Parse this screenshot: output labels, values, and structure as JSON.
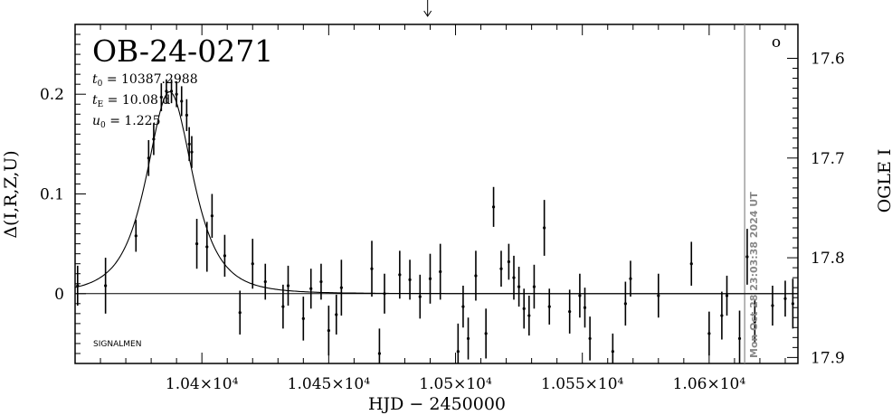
{
  "chart_data": {
    "type": "scatter",
    "title": "OB-24-0271",
    "params": [
      {
        "sym": "t",
        "sub": "0",
        "text": " = 10387.2988"
      },
      {
        "sym": "t",
        "sub": "E",
        "text": " = 10.08 d"
      },
      {
        "sym": "u",
        "sub": "0",
        "text": " = 1.225"
      }
    ],
    "xlabel": "HJD − 2450000",
    "ylabel": "Δ(I,R,Z,U)",
    "y2label": "OGLE I",
    "xlim": [
      10350,
      10635
    ],
    "ylim": [
      -0.07,
      0.27
    ],
    "x_ticks": [
      {
        "value": 10400,
        "label": "1.04×10⁴"
      },
      {
        "value": 10450,
        "label": "1.045×10⁴"
      },
      {
        "value": 10500,
        "label": "1.05×10⁴"
      },
      {
        "value": 10550,
        "label": "1.055×10⁴"
      },
      {
        "value": 10600,
        "label": "1.06×10⁴"
      }
    ],
    "y_ticks": [
      {
        "value": 0,
        "label": "0"
      },
      {
        "value": 0.1,
        "label": "0.1"
      },
      {
        "value": 0.2,
        "label": "0.2"
      }
    ],
    "y2_ticks": [
      {
        "value": 17.6,
        "label": "17.6"
      },
      {
        "value": 17.7,
        "label": "17.7"
      },
      {
        "value": 17.8,
        "label": "17.8"
      },
      {
        "value": 17.9,
        "label": "17.9"
      }
    ],
    "y2_baseline_mag": 17.836,
    "y2_mag_per_unit": -1,
    "model": {
      "t0": 10387.2988,
      "tE": 10.08,
      "amp": 0.2025,
      "baseline": 0
    },
    "current_date_hjd": 10614,
    "date_stamp": "Mon Oct 28 23:03:38 2024 UT",
    "arrow_hjd": 10489,
    "legend_marker": "o",
    "footer_label": "SIGNALMEN",
    "grid": false,
    "points": [
      {
        "x": 10351,
        "y": 0.008,
        "e": 0.02
      },
      {
        "x": 10362,
        "y": 0.008,
        "e": 0.028
      },
      {
        "x": 10374,
        "y": 0.058,
        "e": 0.016
      },
      {
        "x": 10379,
        "y": 0.136,
        "e": 0.018
      },
      {
        "x": 10381,
        "y": 0.155,
        "e": 0.016
      },
      {
        "x": 10384,
        "y": 0.197,
        "e": 0.014
      },
      {
        "x": 10386,
        "y": 0.203,
        "e": 0.012
      },
      {
        "x": 10388,
        "y": 0.203,
        "e": 0.012
      },
      {
        "x": 10390,
        "y": 0.2,
        "e": 0.013
      },
      {
        "x": 10392,
        "y": 0.193,
        "e": 0.015
      },
      {
        "x": 10394,
        "y": 0.179,
        "e": 0.016
      },
      {
        "x": 10395,
        "y": 0.15,
        "e": 0.017
      },
      {
        "x": 10396,
        "y": 0.142,
        "e": 0.016
      },
      {
        "x": 10398,
        "y": 0.05,
        "e": 0.025
      },
      {
        "x": 10402,
        "y": 0.047,
        "e": 0.025
      },
      {
        "x": 10404,
        "y": 0.078,
        "e": 0.022
      },
      {
        "x": 10409,
        "y": 0.038,
        "e": 0.021
      },
      {
        "x": 10415,
        "y": -0.019,
        "e": 0.022
      },
      {
        "x": 10420,
        "y": 0.03,
        "e": 0.025
      },
      {
        "x": 10425,
        "y": 0.012,
        "e": 0.018
      },
      {
        "x": 10432,
        "y": -0.013,
        "e": 0.022
      },
      {
        "x": 10434,
        "y": 0.008,
        "e": 0.02
      },
      {
        "x": 10440,
        "y": -0.025,
        "e": 0.022
      },
      {
        "x": 10443,
        "y": 0.005,
        "e": 0.02
      },
      {
        "x": 10447,
        "y": 0.012,
        "e": 0.018
      },
      {
        "x": 10450,
        "y": -0.037,
        "e": 0.025
      },
      {
        "x": 10453,
        "y": -0.021,
        "e": 0.02
      },
      {
        "x": 10455,
        "y": 0.006,
        "e": 0.028
      },
      {
        "x": 10467,
        "y": 0.025,
        "e": 0.028
      },
      {
        "x": 10470,
        "y": -0.06,
        "e": 0.025
      },
      {
        "x": 10472,
        "y": 0.0,
        "e": 0.02
      },
      {
        "x": 10478,
        "y": 0.019,
        "e": 0.024
      },
      {
        "x": 10482,
        "y": 0.014,
        "e": 0.02
      },
      {
        "x": 10486,
        "y": -0.003,
        "e": 0.022
      },
      {
        "x": 10490,
        "y": 0.015,
        "e": 0.025
      },
      {
        "x": 10494,
        "y": 0.022,
        "e": 0.028
      },
      {
        "x": 10501,
        "y": -0.058,
        "e": 0.028
      },
      {
        "x": 10503,
        "y": -0.013,
        "e": 0.021
      },
      {
        "x": 10505,
        "y": -0.045,
        "e": 0.021
      },
      {
        "x": 10508,
        "y": 0.018,
        "e": 0.025
      },
      {
        "x": 10512,
        "y": -0.04,
        "e": 0.025
      },
      {
        "x": 10515,
        "y": 0.087,
        "e": 0.02
      },
      {
        "x": 10518,
        "y": 0.025,
        "e": 0.018
      },
      {
        "x": 10521,
        "y": 0.032,
        "e": 0.018
      },
      {
        "x": 10523,
        "y": 0.016,
        "e": 0.022
      },
      {
        "x": 10525,
        "y": 0.007,
        "e": 0.02
      },
      {
        "x": 10527,
        "y": -0.015,
        "e": 0.02
      },
      {
        "x": 10529,
        "y": -0.022,
        "e": 0.02
      },
      {
        "x": 10531,
        "y": 0.007,
        "e": 0.022
      },
      {
        "x": 10535,
        "y": 0.066,
        "e": 0.028
      },
      {
        "x": 10537,
        "y": -0.013,
        "e": 0.018
      },
      {
        "x": 10545,
        "y": -0.018,
        "e": 0.022
      },
      {
        "x": 10549,
        "y": -0.002,
        "e": 0.022
      },
      {
        "x": 10551,
        "y": -0.014,
        "e": 0.02
      },
      {
        "x": 10553,
        "y": -0.045,
        "e": 0.022
      },
      {
        "x": 10562,
        "y": -0.058,
        "e": 0.018
      },
      {
        "x": 10567,
        "y": -0.01,
        "e": 0.022
      },
      {
        "x": 10569,
        "y": 0.015,
        "e": 0.018
      },
      {
        "x": 10580,
        "y": -0.002,
        "e": 0.022
      },
      {
        "x": 10593,
        "y": 0.03,
        "e": 0.022
      },
      {
        "x": 10600,
        "y": -0.04,
        "e": 0.022
      },
      {
        "x": 10605,
        "y": -0.022,
        "e": 0.024
      },
      {
        "x": 10607,
        "y": -0.002,
        "e": 0.02
      },
      {
        "x": 10612,
        "y": -0.045,
        "e": 0.028
      },
      {
        "x": 10615,
        "y": 0.037,
        "e": 0.028
      },
      {
        "x": 10618,
        "y": -0.028,
        "e": 0.022
      },
      {
        "x": 10625,
        "y": -0.012,
        "e": 0.02
      },
      {
        "x": 10630,
        "y": -0.005,
        "e": 0.018
      },
      {
        "x": 10633,
        "y": -0.01,
        "e": 0.025
      },
      {
        "x": 10645,
        "y": -0.011,
        "e": 0.028
      }
    ]
  }
}
